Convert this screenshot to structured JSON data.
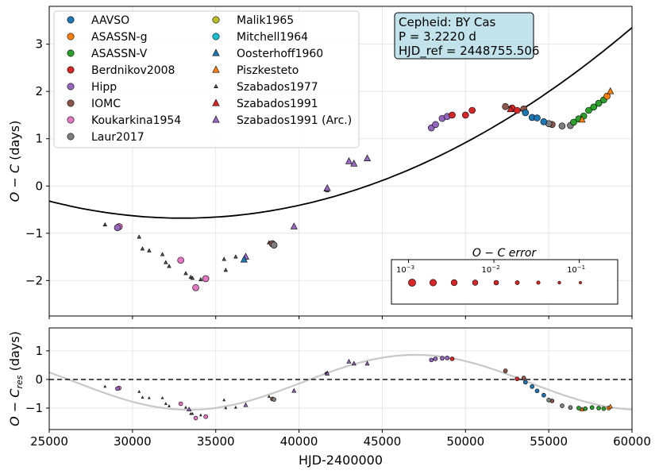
{
  "chart_data": [
    {
      "type": "scatter",
      "panel": "top",
      "ylabel_main": "O − C",
      "ylabel_unit": " (days)",
      "xlim": [
        25000,
        60000
      ],
      "ylim": [
        -2.75,
        3.8
      ],
      "yticks": [
        -2,
        -1,
        0,
        1,
        2,
        3
      ],
      "ytick_labels": [
        "−2",
        "−1",
        "0",
        "1",
        "2",
        "3"
      ],
      "grid": true,
      "info_box": {
        "line1": "Cepheid: BY Cas",
        "line2": "P = 3.2220 d",
        "line3": "HJD_ref = 2448755.506"
      },
      "legend": {
        "placement": "top-left",
        "entries": [
          {
            "name": "AAVSO",
            "color": "#1f77b4",
            "marker": "circle"
          },
          {
            "name": "ASASSN-g",
            "color": "#ff7f0e",
            "marker": "circle"
          },
          {
            "name": "ASASSN-V",
            "color": "#2ca02c",
            "marker": "circle"
          },
          {
            "name": "Berdnikov2008",
            "color": "#d62728",
            "marker": "circle"
          },
          {
            "name": "Hipp",
            "color": "#9467bd",
            "marker": "circle"
          },
          {
            "name": "IOMC",
            "color": "#8c564b",
            "marker": "circle"
          },
          {
            "name": "Koukarkina1954",
            "color": "#e377c2",
            "marker": "circle"
          },
          {
            "name": "Laur2017",
            "color": "#7f7f7f",
            "marker": "circle"
          },
          {
            "name": "Malik1965",
            "color": "#bcbd22",
            "marker": "circle"
          },
          {
            "name": "Mitchell1964",
            "color": "#17becf",
            "marker": "circle"
          },
          {
            "name": "Oosterhoff1960",
            "color": "#1f77b4",
            "marker": "triangle"
          },
          {
            "name": "Piszkesteto",
            "color": "#ff7f0e",
            "marker": "triangle"
          },
          {
            "name": "Szabados1977",
            "color": "#555555",
            "marker": "small-triangle"
          },
          {
            "name": "Szabados1991",
            "color": "#d62728",
            "marker": "triangle"
          },
          {
            "name": "Szabados1991 (Arc.)",
            "color": "#9467bd",
            "marker": "triangle"
          }
        ]
      },
      "fit_curve": {
        "type": "parabola",
        "description": "quadratic O−C fit",
        "vertex": [
          33000,
          -0.68
        ],
        "points": [
          [
            25000,
            -0.32
          ],
          [
            60000,
            3.35
          ]
        ]
      },
      "error_legend": {
        "title": "O − C error",
        "tick_labels": [
          "10",
          "10",
          "10"
        ],
        "tick_exponents": [
          "−3",
          "−2",
          "−1"
        ],
        "values": [
          0.001,
          0.0018,
          0.0034,
          0.0063,
          0.012,
          0.022,
          0.041,
          0.076,
          0.14
        ]
      },
      "series": [
        {
          "name": "Szabados1977",
          "marker": "small-triangle",
          "color": "#555555",
          "points": [
            [
              28350,
              -0.82
            ],
            [
              30400,
              -1.08
            ],
            [
              30600,
              -1.33
            ],
            [
              31000,
              -1.37
            ],
            [
              31800,
              -1.45
            ],
            [
              32000,
              -1.62
            ],
            [
              32200,
              -1.7
            ],
            [
              33200,
              -1.85
            ],
            [
              33500,
              -1.93
            ],
            [
              33600,
              -1.95
            ],
            [
              34100,
              -1.98
            ],
            [
              35500,
              -1.55
            ],
            [
              35600,
              -1.78
            ],
            [
              36200,
              -1.5
            ],
            [
              38200,
              -1.2
            ],
            [
              41600,
              -0.08
            ],
            [
              41700,
              -0.1
            ]
          ]
        },
        {
          "name": "Koukarkina1954",
          "marker": "circle",
          "color": "#e377c2",
          "points": [
            [
              29200,
              -0.86
            ],
            [
              32900,
              -1.57
            ],
            [
              33800,
              -2.15
            ],
            [
              34400,
              -1.96
            ]
          ]
        },
        {
          "name": "Hipp",
          "marker": "circle",
          "color": "#9467bd",
          "points": [
            [
              29100,
              -0.88
            ],
            [
              47950,
              1.23
            ],
            [
              48200,
              1.3
            ],
            [
              48600,
              1.43
            ],
            [
              48900,
              1.47
            ]
          ]
        },
        {
          "name": "Szabados1991 (Arc.)",
          "marker": "triangle",
          "color": "#9467bd",
          "points": [
            [
              36800,
              -1.5
            ],
            [
              39700,
              -0.86
            ],
            [
              41700,
              -0.05
            ],
            [
              43000,
              0.52
            ],
            [
              43300,
              0.47
            ],
            [
              44100,
              0.58
            ]
          ]
        },
        {
          "name": "Oosterhoff1960",
          "marker": "triangle",
          "color": "#1f77b4",
          "points": [
            [
              36700,
              -1.56
            ]
          ]
        },
        {
          "name": "IOMC",
          "marker": "circle",
          "color": "#8c564b",
          "points": [
            [
              38400,
              -1.22
            ],
            [
              52400,
              1.68
            ],
            [
              53500,
              1.63
            ],
            [
              55200,
              1.3
            ]
          ]
        },
        {
          "name": "Laur2017",
          "marker": "circle",
          "color": "#7f7f7f",
          "points": [
            [
              38500,
              -1.25
            ],
            [
              55000,
              1.32
            ],
            [
              55800,
              1.27
            ],
            [
              56300,
              1.28
            ]
          ]
        },
        {
          "name": "Berdnikov2008",
          "marker": "circle",
          "color": "#d62728",
          "points": [
            [
              49200,
              1.5
            ],
            [
              50000,
              1.5
            ],
            [
              50400,
              1.6
            ],
            [
              52800,
              1.65
            ],
            [
              53100,
              1.6
            ]
          ]
        },
        {
          "name": "AAVSO",
          "marker": "circle",
          "color": "#1f77b4",
          "points": [
            [
              53600,
              1.55
            ],
            [
              54000,
              1.45
            ],
            [
              54300,
              1.44
            ],
            [
              54700,
              1.36
            ]
          ]
        },
        {
          "name": "Szabados1991",
          "marker": "triangle",
          "color": "#d62728",
          "points": [
            [
              52700,
              1.62
            ]
          ]
        },
        {
          "name": "ASASSN-V",
          "marker": "circle",
          "color": "#2ca02c",
          "points": [
            [
              56500,
              1.35
            ],
            [
              56800,
              1.42
            ],
            [
              57100,
              1.48
            ],
            [
              57400,
              1.6
            ],
            [
              57700,
              1.67
            ],
            [
              58000,
              1.75
            ],
            [
              58300,
              1.82
            ]
          ]
        },
        {
          "name": "ASASSN-g",
          "marker": "circle",
          "color": "#ff7f0e",
          "points": [
            [
              58500,
              1.9
            ]
          ]
        },
        {
          "name": "Piszkesteto",
          "marker": "triangle",
          "color": "#ff7f0e",
          "points": [
            [
              57000,
              1.4
            ],
            [
              58700,
              2.0
            ]
          ]
        }
      ]
    },
    {
      "type": "scatter",
      "panel": "bottom",
      "xlabel": "HJD-2400000",
      "ylabel_main": "O − C",
      "ylabel_sub": "res",
      "ylabel_unit": " (days)",
      "xlim": [
        25000,
        60000
      ],
      "ylim": [
        -1.75,
        1.8
      ],
      "xticks": [
        25000,
        30000,
        35000,
        40000,
        45000,
        50000,
        55000,
        60000
      ],
      "xtick_labels": [
        "25000",
        "30000",
        "35000",
        "40000",
        "45000",
        "50000",
        "55000",
        "60000"
      ],
      "yticks": [
        -1,
        0,
        1
      ],
      "ytick_labels": [
        "−1",
        "0",
        "1"
      ],
      "grid": true,
      "reference_line": {
        "y": 0,
        "style": "dashed"
      },
      "sine_fit": {
        "amplitude": 0.96,
        "period": 27200,
        "peak_x": 47000,
        "offset": -0.1
      },
      "series": [
        {
          "name": "Szabados1977",
          "marker": "small-triangle",
          "color": "#555555",
          "points": [
            [
              28350,
              -0.25
            ],
            [
              30400,
              -0.43
            ],
            [
              30600,
              -0.63
            ],
            [
              31000,
              -0.65
            ],
            [
              31800,
              -0.65
            ],
            [
              32000,
              -0.85
            ],
            [
              32200,
              -0.93
            ],
            [
              33200,
              -0.98
            ],
            [
              33500,
              -1.2
            ],
            [
              33600,
              -1.2
            ],
            [
              34100,
              -1.25
            ],
            [
              35500,
              -0.72
            ],
            [
              35600,
              -1.0
            ],
            [
              36200,
              -0.98
            ],
            [
              38200,
              -0.6
            ],
            [
              41600,
              0.22
            ],
            [
              41700,
              0.25
            ]
          ]
        },
        {
          "name": "Koukarkina1954",
          "marker": "circle",
          "color": "#e377c2",
          "points": [
            [
              29200,
              -0.3
            ],
            [
              32900,
              -0.85
            ],
            [
              33800,
              -1.35
            ],
            [
              34400,
              -1.3
            ]
          ]
        },
        {
          "name": "Hipp",
          "marker": "circle",
          "color": "#9467bd",
          "points": [
            [
              29100,
              -0.32
            ],
            [
              47950,
              0.68
            ],
            [
              48200,
              0.72
            ],
            [
              48600,
              0.74
            ],
            [
              48900,
              0.75
            ]
          ]
        },
        {
          "name": "Szabados1991 (Arc.)",
          "marker": "triangle",
          "color": "#9467bd",
          "points": [
            [
              33400,
              -1.05
            ],
            [
              36800,
              -0.9
            ],
            [
              39700,
              -0.4
            ],
            [
              41700,
              0.2
            ],
            [
              43000,
              0.62
            ],
            [
              43300,
              0.55
            ],
            [
              44100,
              0.55
            ]
          ]
        },
        {
          "name": "IOMC",
          "marker": "circle",
          "color": "#8c564b",
          "points": [
            [
              38400,
              -0.68
            ],
            [
              52400,
              0.3
            ],
            [
              53500,
              0.05
            ],
            [
              55200,
              -0.75
            ]
          ]
        },
        {
          "name": "Laur2017",
          "marker": "circle",
          "color": "#7f7f7f",
          "points": [
            [
              38500,
              -0.7
            ],
            [
              55000,
              -0.72
            ],
            [
              55800,
              -0.92
            ],
            [
              56300,
              -0.98
            ]
          ]
        },
        {
          "name": "Berdnikov2008",
          "marker": "circle",
          "color": "#d62728",
          "points": [
            [
              49200,
              0.72
            ],
            [
              53100,
              0.02
            ]
          ]
        },
        {
          "name": "AAVSO",
          "marker": "circle",
          "color": "#1f77b4",
          "points": [
            [
              53600,
              -0.1
            ],
            [
              54000,
              -0.25
            ],
            [
              54300,
              -0.4
            ],
            [
              54700,
              -0.55
            ]
          ]
        },
        {
          "name": "ASASSN-V",
          "marker": "circle",
          "color": "#2ca02c",
          "points": [
            [
              56800,
              -1.0
            ],
            [
              57200,
              -1.02
            ],
            [
              57600,
              -0.98
            ],
            [
              58000,
              -1.0
            ],
            [
              58300,
              -1.02
            ]
          ]
        },
        {
          "name": "ASASSN-g",
          "marker": "circle",
          "color": "#ff7f0e",
          "points": [
            [
              58600,
              -1.0
            ]
          ]
        },
        {
          "name": "Piszkesteto",
          "marker": "triangle",
          "color": "#ff7f0e",
          "points": [
            [
              57000,
              -1.05
            ],
            [
              58700,
              -0.95
            ]
          ]
        }
      ]
    }
  ]
}
